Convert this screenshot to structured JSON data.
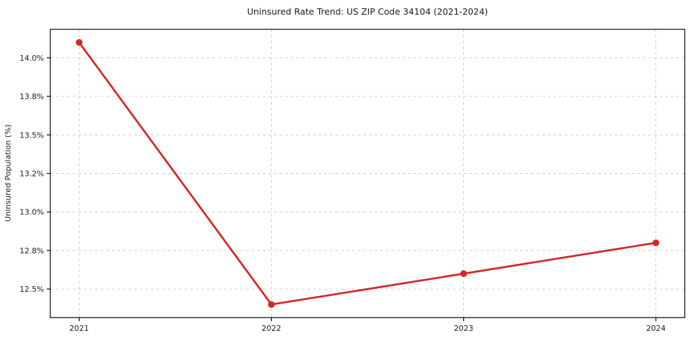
{
  "figure": {
    "background": "#ffffff"
  },
  "chart_data": {
    "type": "line",
    "title": "Uninsured Rate Trend: US ZIP Code 34104 (2021-2024)",
    "xlabel": "",
    "ylabel": "Uninsured Population (%)",
    "x": [
      2021,
      2022,
      2023,
      2024
    ],
    "x_tick_labels": [
      "2021",
      "2022",
      "2023",
      "2024"
    ],
    "series": [
      {
        "name": "Uninsured rate",
        "values": [
          14.1,
          12.4,
          12.6,
          12.8
        ]
      }
    ],
    "y_ticks": [
      12.5,
      12.75,
      13.0,
      13.25,
      13.5,
      13.75,
      14.0
    ],
    "y_tick_labels": [
      "12.5%",
      "12.8%",
      "13.0%",
      "13.2%",
      "13.5%",
      "13.8%",
      "14.0%"
    ],
    "xlim": [
      2020.85,
      2024.15
    ],
    "ylim": [
      12.315,
      14.185
    ],
    "grid": true,
    "grid_style": "dashed",
    "legend": "none",
    "colors": {
      "line": "#d62728",
      "marker": "#d62728",
      "grid": "#c9c9c9",
      "spine": "#000000",
      "text": "#1a1a1a"
    }
  }
}
